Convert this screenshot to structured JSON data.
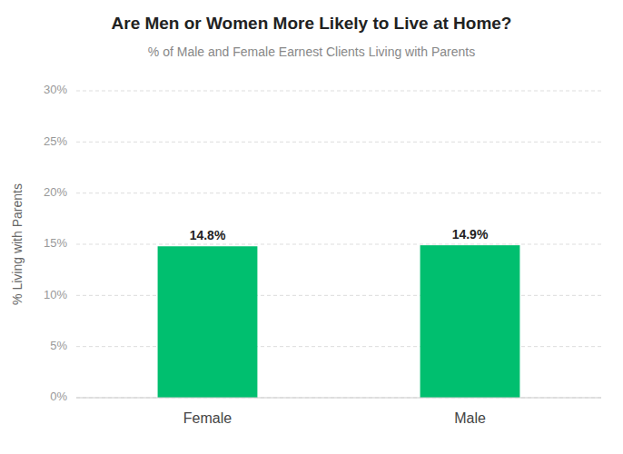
{
  "chart_data": {
    "type": "bar",
    "title": "Are Men or Women More Likely to Live at Home?",
    "subtitle": "% of Male and Female Earnest Clients Living with Parents",
    "ylabel": "% Living with Parents",
    "categories": [
      "Female",
      "Male"
    ],
    "values": [
      0.148,
      0.149
    ],
    "value_labels": [
      "14.8%",
      "14.9%"
    ],
    "data_labels": true,
    "color": "#00BF6F",
    "ylim": [
      0,
      0.3
    ],
    "yticks": [
      {
        "value": 0,
        "label": "0%"
      },
      {
        "value": 0.05,
        "label": "5%"
      },
      {
        "value": 0.1,
        "label": "10%"
      },
      {
        "value": 0.15,
        "label": "15%"
      },
      {
        "value": 0.2,
        "label": "20%"
      },
      {
        "value": 0.25,
        "label": "25%"
      },
      {
        "value": 0.3,
        "label": "30%"
      }
    ],
    "grid": true
  }
}
